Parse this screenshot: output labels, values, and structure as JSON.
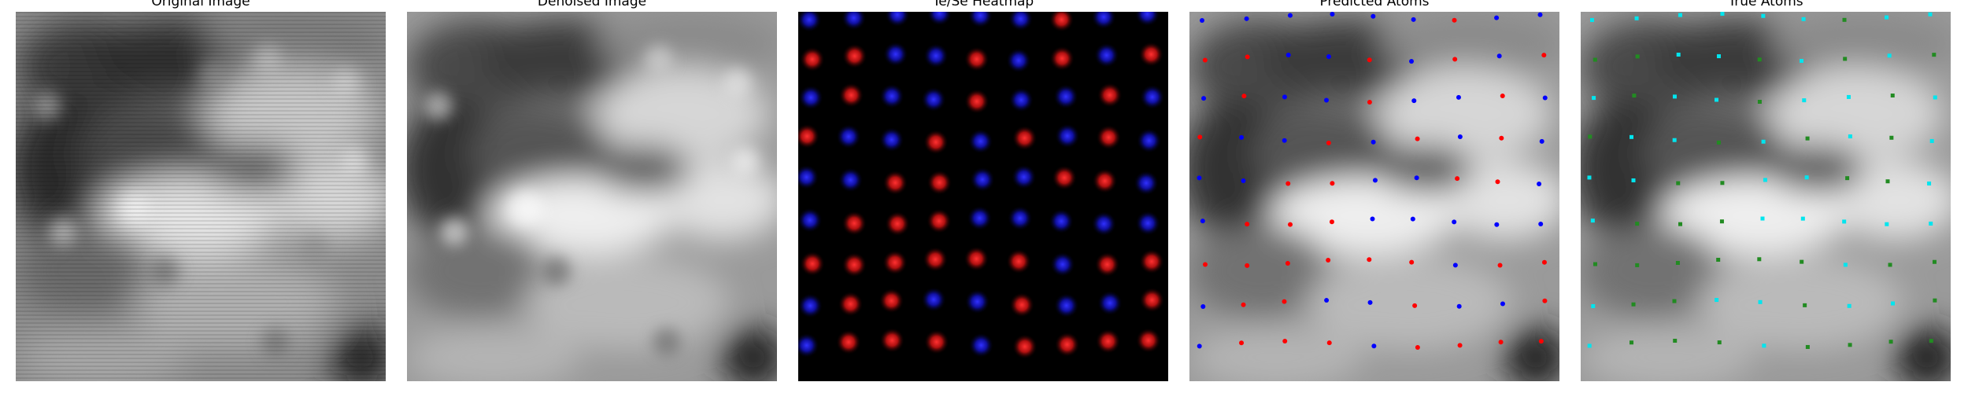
{
  "figure": {
    "panels": [
      {
        "title": "Original Image"
      },
      {
        "title": "Denoised Image"
      },
      {
        "title": "Te/Se Heatmap"
      },
      {
        "title": "Predicted Atoms"
      },
      {
        "title": "True Atoms"
      }
    ]
  },
  "colors": {
    "background": "#ffffff",
    "heatmap_background": "#000000",
    "te_red": "#ff2020",
    "se_blue": "#2020ff",
    "predicted_red": "#ff0000",
    "predicted_blue": "#0000ff",
    "true_cyan": "#00e5ee",
    "true_green": "#228b22"
  }
}
